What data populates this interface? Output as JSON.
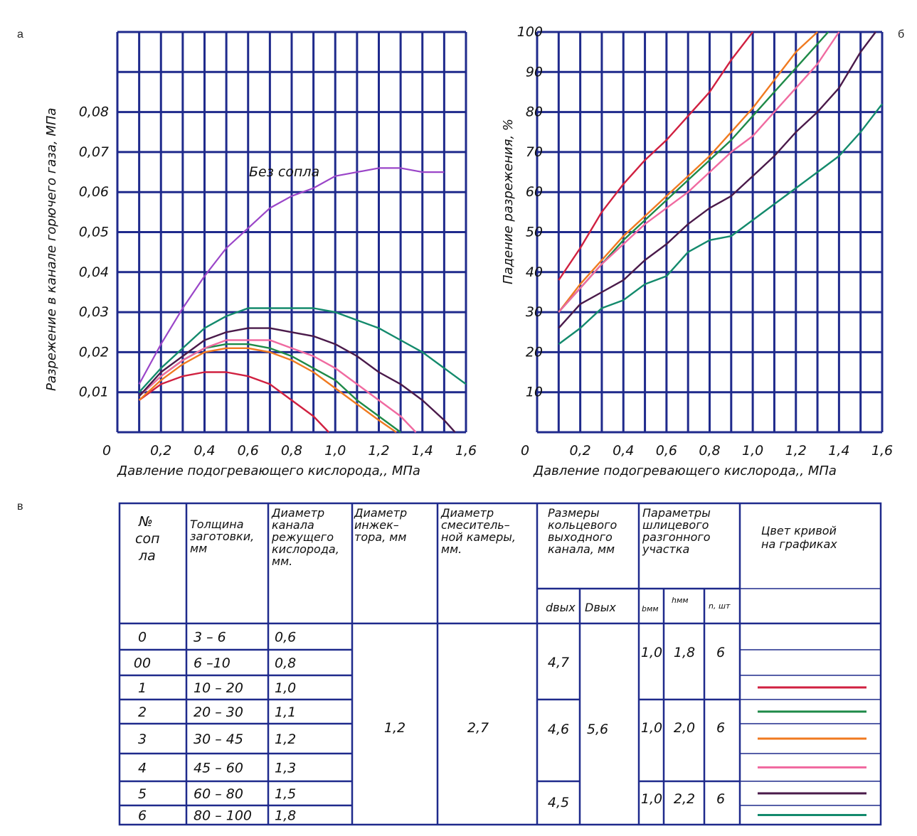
{
  "panels": {
    "a": "а",
    "b": "б",
    "c": "в"
  },
  "chart_data": [
    {
      "type": "line",
      "ylabel": "Разрежение в канале горючего газа, МПа",
      "xlabel": "Давление подогревающего кислорода,, МПа",
      "x_ticks": [
        "0",
        "0,2",
        "0,4",
        "0,6",
        "0,8",
        "1,0",
        "1,2",
        "1,4",
        "1,6"
      ],
      "y_ticks": [
        "0,01",
        "0,02",
        "0,03",
        "0,04",
        "0,05",
        "0,06",
        "0,07",
        "0,08"
      ],
      "xlim": [
        0,
        1.6
      ],
      "ylim": [
        0,
        0.1
      ],
      "annotation": "Без сопла",
      "series": [
        {
          "name": "Без сопла",
          "color": "#9a45c8",
          "x": [
            0.1,
            0.2,
            0.3,
            0.4,
            0.5,
            0.6,
            0.7,
            0.8,
            0.9,
            1.0,
            1.1,
            1.2,
            1.3,
            1.4,
            1.5
          ],
          "y": [
            0.012,
            0.022,
            0.031,
            0.039,
            0.046,
            0.051,
            0.056,
            0.059,
            0.061,
            0.064,
            0.065,
            0.066,
            0.066,
            0.065,
            0.065
          ]
        },
        {
          "name": "1",
          "color": "#d02040",
          "x": [
            0.1,
            0.2,
            0.3,
            0.4,
            0.5,
            0.6,
            0.7,
            0.8,
            0.9,
            0.97
          ],
          "y": [
            0.008,
            0.012,
            0.014,
            0.015,
            0.015,
            0.014,
            0.012,
            0.008,
            0.004,
            0.0
          ]
        },
        {
          "name": "2",
          "color": "#1e8a48",
          "x": [
            0.1,
            0.2,
            0.3,
            0.4,
            0.5,
            0.6,
            0.7,
            0.8,
            0.9,
            1.0,
            1.1,
            1.2,
            1.3
          ],
          "y": [
            0.009,
            0.014,
            0.018,
            0.021,
            0.022,
            0.022,
            0.021,
            0.019,
            0.016,
            0.013,
            0.008,
            0.004,
            0.0
          ]
        },
        {
          "name": "3",
          "color": "#f07a20",
          "x": [
            0.1,
            0.2,
            0.3,
            0.4,
            0.5,
            0.6,
            0.7,
            0.8,
            0.9,
            1.0,
            1.1,
            1.2,
            1.28
          ],
          "y": [
            0.008,
            0.013,
            0.017,
            0.02,
            0.021,
            0.021,
            0.02,
            0.018,
            0.015,
            0.011,
            0.007,
            0.003,
            0.0
          ]
        },
        {
          "name": "4",
          "color": "#f06aa0",
          "x": [
            0.1,
            0.2,
            0.3,
            0.4,
            0.5,
            0.6,
            0.7,
            0.8,
            0.9,
            1.0,
            1.1,
            1.2,
            1.3,
            1.37
          ],
          "y": [
            0.009,
            0.014,
            0.018,
            0.021,
            0.023,
            0.023,
            0.023,
            0.021,
            0.019,
            0.016,
            0.012,
            0.008,
            0.004,
            0.0
          ]
        },
        {
          "name": "5",
          "color": "#4a1a4a",
          "x": [
            0.1,
            0.2,
            0.3,
            0.4,
            0.5,
            0.6,
            0.7,
            0.8,
            0.9,
            1.0,
            1.1,
            1.2,
            1.3,
            1.4,
            1.5,
            1.55
          ],
          "y": [
            0.009,
            0.015,
            0.019,
            0.023,
            0.025,
            0.026,
            0.026,
            0.025,
            0.024,
            0.022,
            0.019,
            0.015,
            0.012,
            0.008,
            0.003,
            0.0
          ]
        },
        {
          "name": "6",
          "color": "#138a6c",
          "x": [
            0.1,
            0.2,
            0.3,
            0.4,
            0.5,
            0.6,
            0.7,
            0.8,
            0.9,
            1.0,
            1.1,
            1.2,
            1.3,
            1.4,
            1.5,
            1.6
          ],
          "y": [
            0.01,
            0.016,
            0.021,
            0.026,
            0.029,
            0.031,
            0.031,
            0.031,
            0.031,
            0.03,
            0.028,
            0.026,
            0.023,
            0.02,
            0.016,
            0.012
          ]
        }
      ]
    },
    {
      "type": "line",
      "ylabel": "Падение разрежения, %",
      "xlabel": "Давление подогревающего кислорода,, МПа",
      "x_ticks": [
        "0",
        "0,2",
        "0,4",
        "0,6",
        "0,8",
        "1,0",
        "1,2",
        "1,4",
        "1,6"
      ],
      "y_ticks": [
        "10",
        "20",
        "30",
        "40",
        "50",
        "60",
        "70",
        "80",
        "90",
        "100"
      ],
      "xlim": [
        0,
        1.6
      ],
      "ylim": [
        0,
        100
      ],
      "series": [
        {
          "name": "1",
          "color": "#d02040",
          "x": [
            0.1,
            0.2,
            0.3,
            0.4,
            0.5,
            0.6,
            0.7,
            0.8,
            0.9,
            1.0
          ],
          "y": [
            38,
            46,
            55,
            62,
            68,
            73,
            79,
            85,
            93,
            100
          ]
        },
        {
          "name": "3",
          "color": "#f07a20",
          "x": [
            0.1,
            0.2,
            0.3,
            0.4,
            0.5,
            0.6,
            0.7,
            0.8,
            0.9,
            1.0,
            1.1,
            1.2,
            1.3
          ],
          "y": [
            30,
            37,
            43,
            49,
            54,
            59,
            64,
            69,
            75,
            81,
            88,
            95,
            100
          ]
        },
        {
          "name": "2",
          "color": "#1e8a48",
          "x": [
            0.1,
            0.2,
            0.3,
            0.4,
            0.5,
            0.6,
            0.7,
            0.8,
            0.9,
            1.0,
            1.1,
            1.2,
            1.3,
            1.35
          ],
          "y": [
            30,
            36,
            42,
            48,
            53,
            58,
            63,
            68,
            73,
            79,
            85,
            91,
            97,
            100
          ]
        },
        {
          "name": "4",
          "color": "#f06aa0",
          "x": [
            0.1,
            0.2,
            0.3,
            0.4,
            0.5,
            0.6,
            0.7,
            0.8,
            0.9,
            1.0,
            1.1,
            1.2,
            1.3,
            1.4
          ],
          "y": [
            30,
            36,
            42,
            47,
            52,
            56,
            60,
            65,
            70,
            74,
            80,
            86,
            92,
            100
          ]
        },
        {
          "name": "5",
          "color": "#4a1a4a",
          "x": [
            0.1,
            0.2,
            0.3,
            0.4,
            0.5,
            0.6,
            0.7,
            0.8,
            0.9,
            1.0,
            1.1,
            1.2,
            1.3,
            1.4,
            1.5,
            1.57
          ],
          "y": [
            26,
            32,
            35,
            38,
            43,
            47,
            52,
            56,
            59,
            64,
            69,
            75,
            80,
            86,
            95,
            100
          ]
        },
        {
          "name": "6",
          "color": "#138a6c",
          "x": [
            0.1,
            0.2,
            0.3,
            0.4,
            0.5,
            0.6,
            0.7,
            0.8,
            0.9,
            1.0,
            1.1,
            1.2,
            1.3,
            1.4,
            1.5,
            1.6
          ],
          "y": [
            22,
            26,
            31,
            33,
            37,
            39,
            45,
            48,
            49,
            53,
            57,
            61,
            65,
            69,
            75,
            82
          ]
        }
      ]
    },
    {
      "type": "table",
      "headers": {
        "n": [
          "№",
          "соп",
          "ла"
        ],
        "thick": [
          "Толщина",
          "заготовки,",
          "мм"
        ],
        "cut": [
          "Диаметр",
          "канала",
          "режущего",
          "кислорода,",
          "мм."
        ],
        "inj": [
          "Диаметр",
          "инжек–",
          "тора, мм"
        ],
        "mix": [
          "Диаметр",
          "смеситель–",
          "ной камеры,",
          "мм."
        ],
        "ring": [
          "Размеры",
          "кольцевого",
          "выходного",
          "канала, мм"
        ],
        "ring_d": "dвых",
        "ring_D": "Dвых",
        "slit": [
          "Параметры",
          "шлицевого",
          "разгонного",
          "участка"
        ],
        "slit_b": "bмм",
        "slit_h": "hмм",
        "slit_n": "n, шт",
        "color": [
          "Цвет кривой",
          "на графиках"
        ]
      },
      "rows": [
        {
          "n": "0",
          "thick": "3 – 6",
          "cut": "0,6"
        },
        {
          "n": "00",
          "thick": "6 –10",
          "cut": "0,8"
        },
        {
          "n": "1",
          "thick": "10 – 20",
          "cut": "1,0",
          "color": "#d02040"
        },
        {
          "n": "2",
          "thick": "20 – 30",
          "cut": "1,1",
          "color": "#1e8a48"
        },
        {
          "n": "3",
          "thick": "30 – 45",
          "cut": "1,2",
          "color": "#f07a20"
        },
        {
          "n": "4",
          "thick": "45 – 60",
          "cut": "1,3",
          "color": "#f06aa0"
        },
        {
          "n": "5",
          "thick": "60 – 80",
          "cut": "1,5",
          "color": "#4a1a4a"
        },
        {
          "n": "6",
          "thick": "80 – 100",
          "cut": "1,8",
          "color": "#138a6c"
        }
      ],
      "merged": {
        "inj": "1,2",
        "mix": "2,7",
        "d_out": [
          "4,7",
          "4,6",
          "4,5"
        ],
        "D_out": "5,6",
        "b": [
          "1,0",
          "1,0",
          "1,0"
        ],
        "h": [
          "1,8",
          "2,0",
          "2,2"
        ],
        "n": [
          "6",
          "6",
          "6"
        ]
      }
    }
  ]
}
